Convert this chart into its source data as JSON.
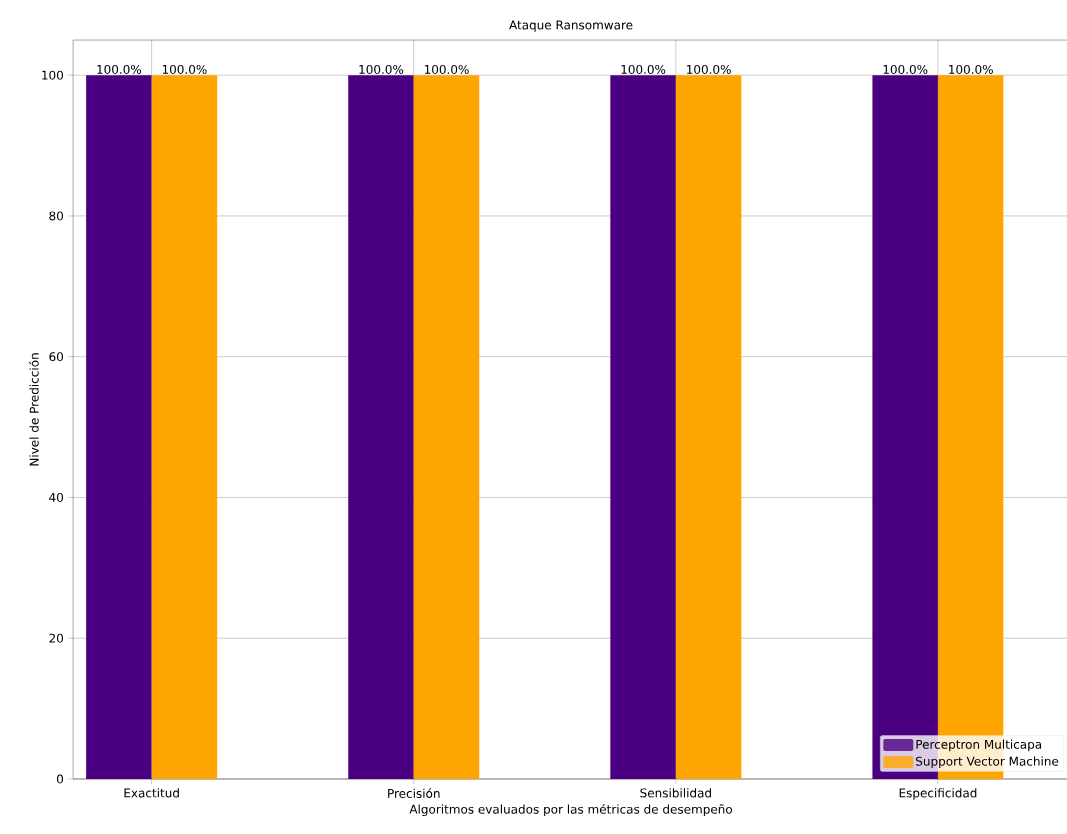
{
  "chart_data": {
    "type": "bar",
    "title": "Ataque Ransomware",
    "xlabel": "Algoritmos evaluados por las métricas de desempeño",
    "ylabel": "Nivel de Predicción",
    "categories": [
      "Exactitud",
      "Precisión",
      "Sensibilidad",
      "Especificidad"
    ],
    "series": [
      {
        "name": "Perceptron Multicapa",
        "color": "#4b0082",
        "values": [
          100,
          100,
          100,
          100
        ],
        "value_labels": [
          "100.0%",
          "100.0%",
          "100.0%",
          "100.0%"
        ]
      },
      {
        "name": "Support Vector Machine",
        "color": "#ffa500",
        "values": [
          100,
          100,
          100,
          100
        ],
        "value_labels": [
          "100.0%",
          "100.0%",
          "100.0%",
          "100.0%"
        ]
      }
    ],
    "ylim": [
      0,
      105
    ],
    "yticks": [
      0,
      20,
      40,
      60,
      80,
      100
    ],
    "grid": true,
    "legend": "bottom right"
  }
}
